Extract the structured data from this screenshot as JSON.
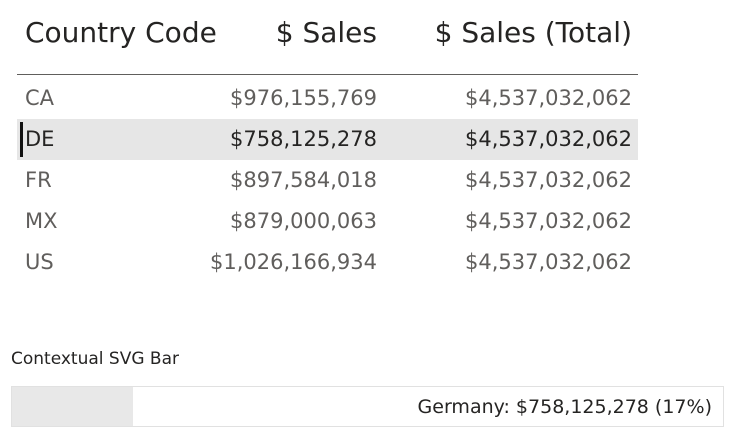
{
  "table": {
    "headers": [
      "Country Code",
      "$ Sales",
      "$ Sales (Total)"
    ],
    "rows": [
      {
        "code": "CA",
        "sales": "$976,155,769",
        "total": "$4,537,032,062",
        "selected": false
      },
      {
        "code": "DE",
        "sales": "$758,125,278",
        "total": "$4,537,032,062",
        "selected": true
      },
      {
        "code": "FR",
        "sales": "$897,584,018",
        "total": "$4,537,032,062",
        "selected": false
      },
      {
        "code": "MX",
        "sales": "$879,000,063",
        "total": "$4,537,032,062",
        "selected": false
      },
      {
        "code": "US",
        "sales": "$1,026,166,934",
        "total": "$4,537,032,062",
        "selected": false
      }
    ]
  },
  "svg_bar": {
    "title": "Contextual SVG Bar",
    "label": "Germany: $758,125,278 (17%)",
    "fraction": 0.17
  },
  "colors": {
    "selected_row": "#e6e6e6",
    "bar_fill": "#e8e8e8"
  }
}
